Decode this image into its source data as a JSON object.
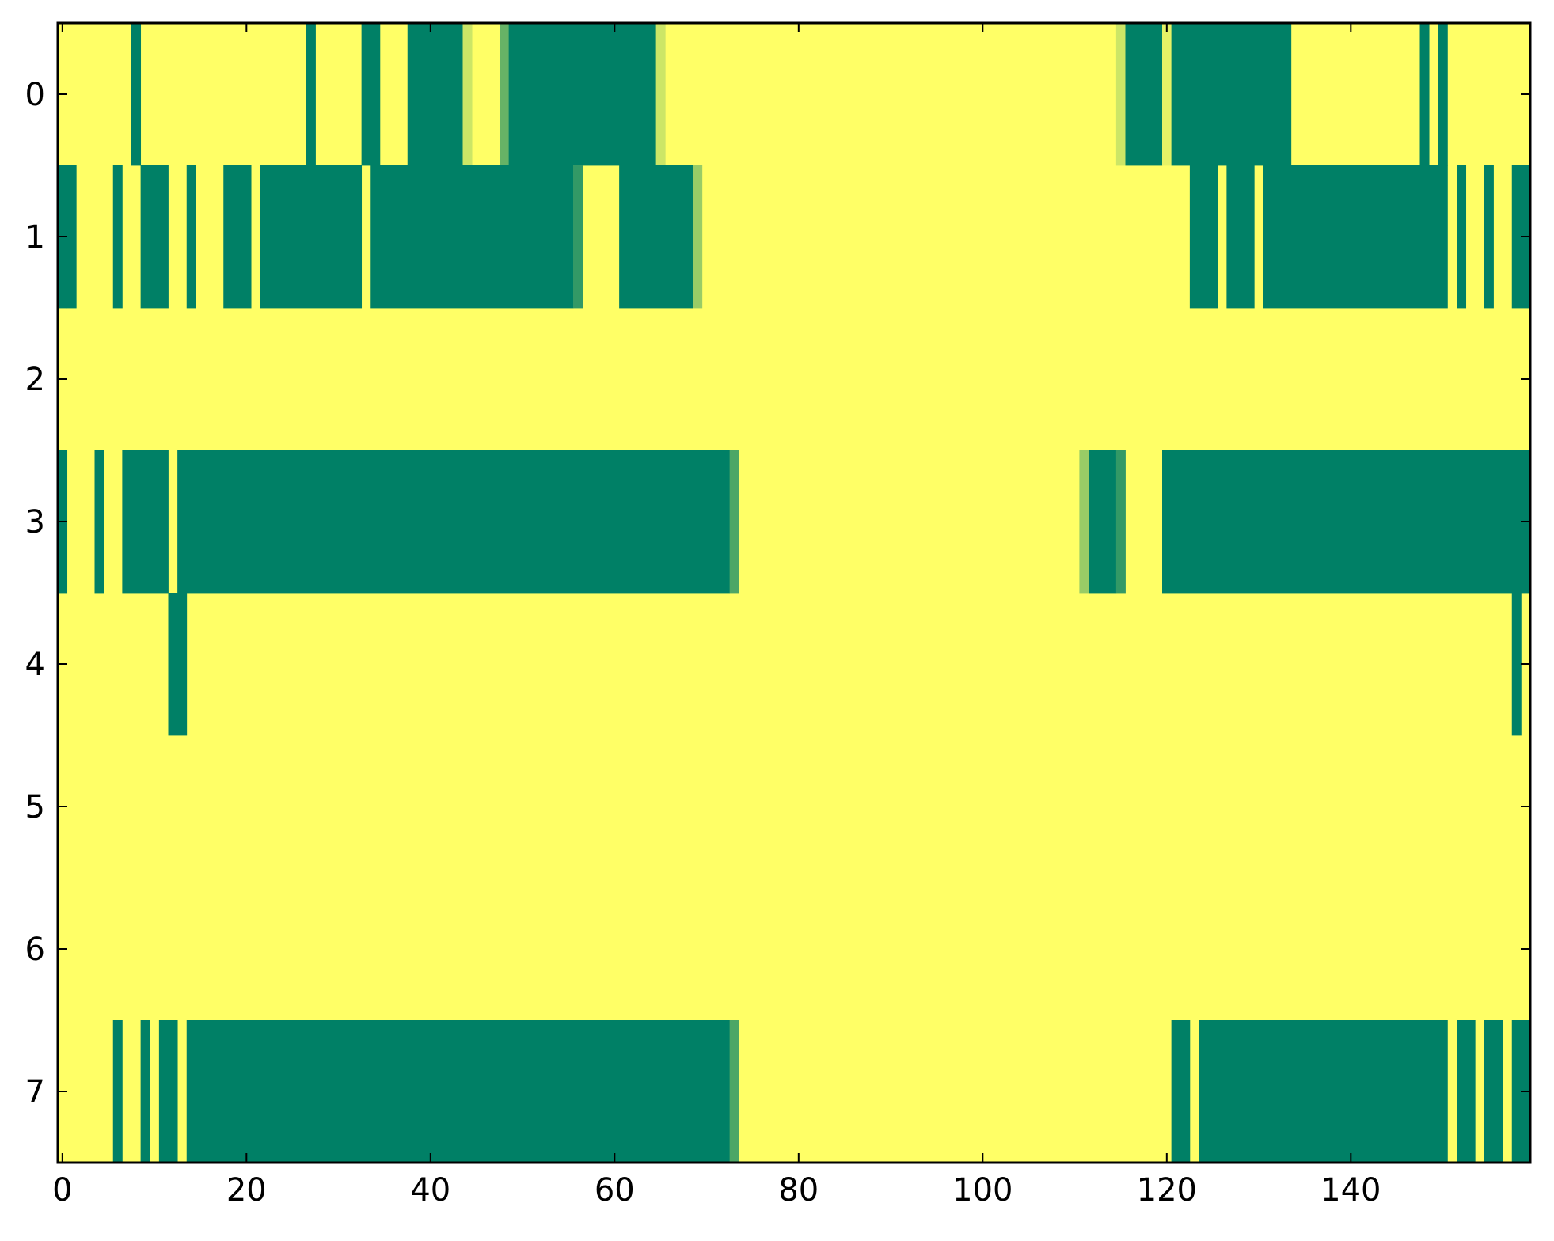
{
  "chart_data": {
    "type": "heatmap",
    "title": "",
    "xlabel": "",
    "ylabel": "",
    "x_range": [
      -0.5,
      159.5
    ],
    "y_range": [
      -0.5,
      7.5
    ],
    "y_inverted": true,
    "grid": false,
    "legend": "none",
    "x_ticks": [
      0,
      20,
      40,
      60,
      80,
      100,
      120,
      140
    ],
    "x_tick_labels": [
      "0",
      "20",
      "40",
      "60",
      "80",
      "100",
      "120",
      "140"
    ],
    "y_ticks": [
      0,
      1,
      2,
      3,
      4,
      5,
      6,
      7
    ],
    "y_tick_labels": [
      "0",
      "1",
      "2",
      "3",
      "4",
      "5",
      "6",
      "7"
    ],
    "colormap": "summer",
    "value_range": [
      0,
      1
    ],
    "colors": {
      "low": "#008066",
      "high": "#ffff66",
      "frame": "#000000"
    },
    "background_value": 1,
    "rows": [
      {
        "row": 0,
        "segments": [
          [
            8,
            8,
            0
          ],
          [
            27,
            27,
            0
          ],
          [
            33,
            34,
            0
          ],
          [
            38,
            43,
            0
          ],
          [
            44,
            44,
            0.8
          ],
          [
            48,
            48,
            0.4
          ],
          [
            49,
            64,
            0
          ],
          [
            65,
            65,
            0.8
          ],
          [
            115,
            115,
            0.8
          ],
          [
            116,
            119,
            0
          ],
          [
            120,
            120,
            0.9
          ],
          [
            121,
            133,
            0
          ],
          [
            148,
            148,
            0
          ],
          [
            150,
            150,
            0
          ]
        ]
      },
      {
        "row": 1,
        "segments": [
          [
            0,
            0,
            0
          ],
          [
            1,
            1,
            0
          ],
          [
            6,
            6,
            0
          ],
          [
            9,
            11,
            0
          ],
          [
            14,
            14,
            0
          ],
          [
            18,
            20,
            0
          ],
          [
            22,
            32,
            0
          ],
          [
            34,
            55,
            0
          ],
          [
            56,
            56,
            0.2
          ],
          [
            61,
            68,
            0
          ],
          [
            69,
            69,
            0.6
          ],
          [
            123,
            125,
            0
          ],
          [
            127,
            129,
            0
          ],
          [
            131,
            150,
            0
          ],
          [
            152,
            152,
            0
          ],
          [
            155,
            155,
            0
          ],
          [
            158,
            159,
            0
          ]
        ]
      },
      {
        "row": 2,
        "segments": []
      },
      {
        "row": 3,
        "segments": [
          [
            0,
            0,
            0
          ],
          [
            4,
            4,
            0
          ],
          [
            7,
            11,
            0
          ],
          [
            13,
            72,
            0
          ],
          [
            73,
            73,
            0.3
          ],
          [
            111,
            111,
            0.6
          ],
          [
            112,
            114,
            0
          ],
          [
            115,
            115,
            0.2
          ],
          [
            120,
            159,
            0
          ]
        ]
      },
      {
        "row": 4,
        "segments": [
          [
            12,
            13,
            0
          ],
          [
            158,
            158,
            0
          ]
        ]
      },
      {
        "row": 5,
        "segments": []
      },
      {
        "row": 6,
        "segments": []
      },
      {
        "row": 7,
        "segments": [
          [
            6,
            6,
            0
          ],
          [
            9,
            9,
            0
          ],
          [
            11,
            12,
            0
          ],
          [
            14,
            72,
            0
          ],
          [
            73,
            73,
            0.3
          ],
          [
            121,
            122,
            0
          ],
          [
            124,
            150,
            0
          ],
          [
            152,
            153,
            0
          ],
          [
            155,
            156,
            0
          ],
          [
            158,
            159,
            0
          ]
        ]
      }
    ]
  }
}
